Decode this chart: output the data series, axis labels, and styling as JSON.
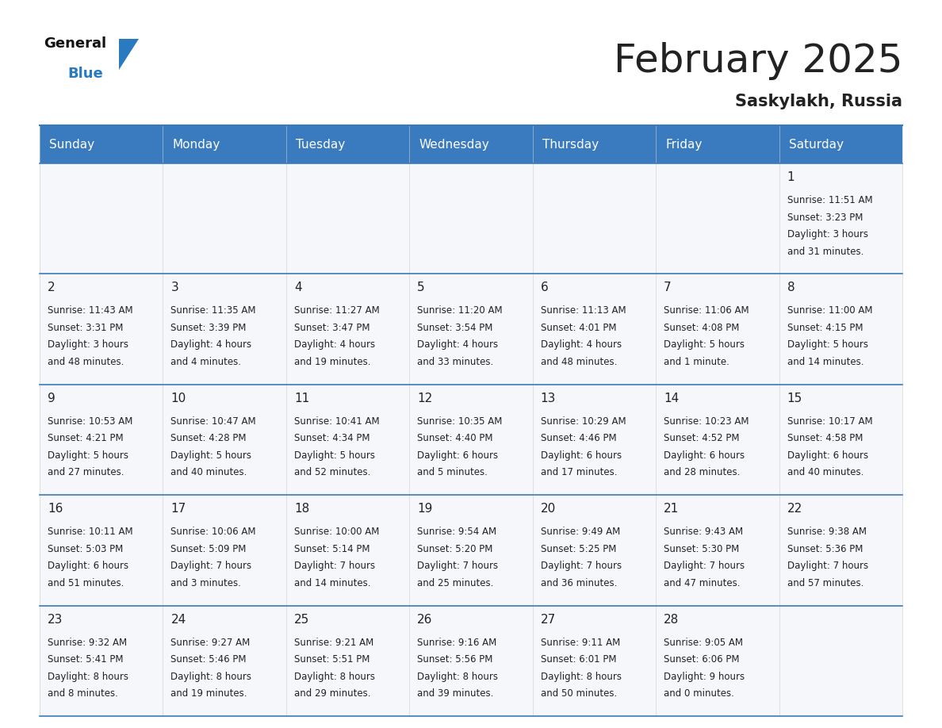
{
  "title": "February 2025",
  "subtitle": "Saskylakh, Russia",
  "header_bg": "#3a7abf",
  "header_text_color": "#ffffff",
  "cell_bg": "#f5f7fa",
  "text_color": "#222222",
  "line_color": "#3a7abf",
  "days_of_week": [
    "Sunday",
    "Monday",
    "Tuesday",
    "Wednesday",
    "Thursday",
    "Friday",
    "Saturday"
  ],
  "calendar": [
    [
      null,
      null,
      null,
      null,
      null,
      null,
      {
        "day": 1,
        "sunrise": "11:51 AM",
        "sunset": "3:23 PM",
        "daylight": "3 hours",
        "daylight2": "and 31 minutes."
      }
    ],
    [
      {
        "day": 2,
        "sunrise": "11:43 AM",
        "sunset": "3:31 PM",
        "daylight": "3 hours",
        "daylight2": "and 48 minutes."
      },
      {
        "day": 3,
        "sunrise": "11:35 AM",
        "sunset": "3:39 PM",
        "daylight": "4 hours",
        "daylight2": "and 4 minutes."
      },
      {
        "day": 4,
        "sunrise": "11:27 AM",
        "sunset": "3:47 PM",
        "daylight": "4 hours",
        "daylight2": "and 19 minutes."
      },
      {
        "day": 5,
        "sunrise": "11:20 AM",
        "sunset": "3:54 PM",
        "daylight": "4 hours",
        "daylight2": "and 33 minutes."
      },
      {
        "day": 6,
        "sunrise": "11:13 AM",
        "sunset": "4:01 PM",
        "daylight": "4 hours",
        "daylight2": "and 48 minutes."
      },
      {
        "day": 7,
        "sunrise": "11:06 AM",
        "sunset": "4:08 PM",
        "daylight": "5 hours",
        "daylight2": "and 1 minute."
      },
      {
        "day": 8,
        "sunrise": "11:00 AM",
        "sunset": "4:15 PM",
        "daylight": "5 hours",
        "daylight2": "and 14 minutes."
      }
    ],
    [
      {
        "day": 9,
        "sunrise": "10:53 AM",
        "sunset": "4:21 PM",
        "daylight": "5 hours",
        "daylight2": "and 27 minutes."
      },
      {
        "day": 10,
        "sunrise": "10:47 AM",
        "sunset": "4:28 PM",
        "daylight": "5 hours",
        "daylight2": "and 40 minutes."
      },
      {
        "day": 11,
        "sunrise": "10:41 AM",
        "sunset": "4:34 PM",
        "daylight": "5 hours",
        "daylight2": "and 52 minutes."
      },
      {
        "day": 12,
        "sunrise": "10:35 AM",
        "sunset": "4:40 PM",
        "daylight": "6 hours",
        "daylight2": "and 5 minutes."
      },
      {
        "day": 13,
        "sunrise": "10:29 AM",
        "sunset": "4:46 PM",
        "daylight": "6 hours",
        "daylight2": "and 17 minutes."
      },
      {
        "day": 14,
        "sunrise": "10:23 AM",
        "sunset": "4:52 PM",
        "daylight": "6 hours",
        "daylight2": "and 28 minutes."
      },
      {
        "day": 15,
        "sunrise": "10:17 AM",
        "sunset": "4:58 PM",
        "daylight": "6 hours",
        "daylight2": "and 40 minutes."
      }
    ],
    [
      {
        "day": 16,
        "sunrise": "10:11 AM",
        "sunset": "5:03 PM",
        "daylight": "6 hours",
        "daylight2": "and 51 minutes."
      },
      {
        "day": 17,
        "sunrise": "10:06 AM",
        "sunset": "5:09 PM",
        "daylight": "7 hours",
        "daylight2": "and 3 minutes."
      },
      {
        "day": 18,
        "sunrise": "10:00 AM",
        "sunset": "5:14 PM",
        "daylight": "7 hours",
        "daylight2": "and 14 minutes."
      },
      {
        "day": 19,
        "sunrise": "9:54 AM",
        "sunset": "5:20 PM",
        "daylight": "7 hours",
        "daylight2": "and 25 minutes."
      },
      {
        "day": 20,
        "sunrise": "9:49 AM",
        "sunset": "5:25 PM",
        "daylight": "7 hours",
        "daylight2": "and 36 minutes."
      },
      {
        "day": 21,
        "sunrise": "9:43 AM",
        "sunset": "5:30 PM",
        "daylight": "7 hours",
        "daylight2": "and 47 minutes."
      },
      {
        "day": 22,
        "sunrise": "9:38 AM",
        "sunset": "5:36 PM",
        "daylight": "7 hours",
        "daylight2": "and 57 minutes."
      }
    ],
    [
      {
        "day": 23,
        "sunrise": "9:32 AM",
        "sunset": "5:41 PM",
        "daylight": "8 hours",
        "daylight2": "and 8 minutes."
      },
      {
        "day": 24,
        "sunrise": "9:27 AM",
        "sunset": "5:46 PM",
        "daylight": "8 hours",
        "daylight2": "and 19 minutes."
      },
      {
        "day": 25,
        "sunrise": "9:21 AM",
        "sunset": "5:51 PM",
        "daylight": "8 hours",
        "daylight2": "and 29 minutes."
      },
      {
        "day": 26,
        "sunrise": "9:16 AM",
        "sunset": "5:56 PM",
        "daylight": "8 hours",
        "daylight2": "and 39 minutes."
      },
      {
        "day": 27,
        "sunrise": "9:11 AM",
        "sunset": "6:01 PM",
        "daylight": "8 hours",
        "daylight2": "and 50 minutes."
      },
      {
        "day": 28,
        "sunrise": "9:05 AM",
        "sunset": "6:06 PM",
        "daylight": "9 hours",
        "daylight2": "and 0 minutes."
      },
      null
    ]
  ],
  "logo_general_color": "#111111",
  "logo_blue_color": "#2a7abf",
  "logo_triangle_color": "#2a7abf",
  "title_fontsize": 36,
  "subtitle_fontsize": 15,
  "header_fontsize": 11,
  "day_num_fontsize": 11,
  "cell_text_fontsize": 8.5
}
